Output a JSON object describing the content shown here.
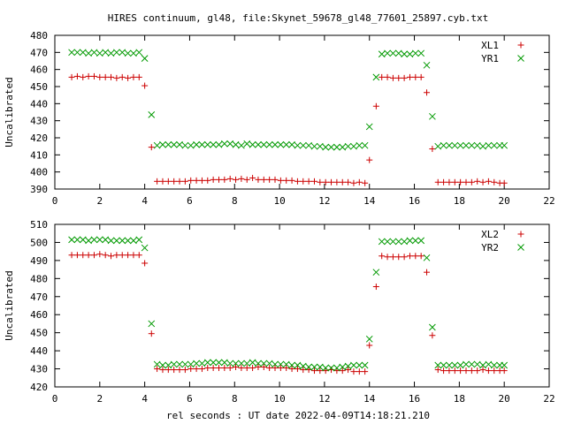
{
  "title": "HIRES continuum, gl48, file:Skynet_59678_gl48_77601_25897.cyb.txt",
  "xlabel": "rel seconds : UT date 2022-04-09T14:18:21.210",
  "colors": {
    "XL": "#cc0000",
    "YR": "#009900"
  },
  "chart_data": [
    {
      "type": "scatter",
      "ylabel": "Uncalibrated",
      "xlim": [
        0,
        22
      ],
      "ylim": [
        390,
        480
      ],
      "xticks": [
        0,
        2,
        4,
        6,
        8,
        10,
        12,
        14,
        16,
        18,
        20,
        22
      ],
      "yticks": [
        390,
        400,
        410,
        420,
        430,
        440,
        450,
        460,
        470,
        480
      ],
      "legend": "top-right",
      "series": [
        {
          "name": "XL1",
          "marker": "plus",
          "x": [
            0.75,
            1.0,
            1.25,
            1.5,
            1.75,
            2.0,
            2.25,
            2.5,
            2.75,
            3.0,
            3.25,
            3.5,
            3.75,
            4.0,
            4.3,
            4.55,
            4.8,
            5.05,
            5.3,
            5.55,
            5.8,
            6.05,
            6.3,
            6.55,
            6.8,
            7.05,
            7.3,
            7.55,
            7.8,
            8.05,
            8.3,
            8.55,
            8.8,
            9.05,
            9.3,
            9.55,
            9.8,
            10.05,
            10.3,
            10.55,
            10.8,
            11.05,
            11.3,
            11.55,
            11.8,
            12.05,
            12.3,
            12.55,
            12.8,
            13.05,
            13.3,
            13.55,
            13.8,
            14.0,
            14.3,
            14.55,
            14.8,
            15.05,
            15.3,
            15.55,
            15.8,
            16.05,
            16.3,
            16.55,
            16.8,
            17.05,
            17.3,
            17.55,
            17.8,
            18.05,
            18.3,
            18.55,
            18.8,
            19.05,
            19.3,
            19.55,
            19.8,
            20.0
          ],
          "y": [
            455.5,
            456,
            455.5,
            456,
            456,
            455.5,
            455.5,
            455.5,
            455,
            455.5,
            455,
            455.5,
            455.5,
            450.5,
            414.5,
            394.5,
            394.5,
            394.5,
            394.5,
            394.5,
            394.5,
            395,
            395,
            395,
            395,
            395.5,
            395.5,
            395.5,
            396,
            395.5,
            396,
            395.5,
            396.5,
            395.5,
            395.5,
            395.5,
            395.5,
            395,
            395,
            395,
            394.5,
            394.5,
            394.5,
            394.5,
            394,
            394,
            394,
            394,
            394,
            394,
            393.5,
            394,
            393.5,
            407,
            438.5,
            455.5,
            455.5,
            455,
            455,
            455,
            455.5,
            455.5,
            455.5,
            446.5,
            413.5,
            394,
            394,
            394,
            394,
            394,
            394,
            394,
            394.5,
            394,
            394.5,
            394,
            393.5,
            393.5
          ]
        },
        {
          "name": "YR1",
          "marker": "cross",
          "x": [
            0.75,
            1.0,
            1.25,
            1.5,
            1.75,
            2.0,
            2.25,
            2.5,
            2.75,
            3.0,
            3.25,
            3.5,
            3.75,
            4.0,
            4.3,
            4.55,
            4.8,
            5.05,
            5.3,
            5.55,
            5.8,
            6.05,
            6.3,
            6.55,
            6.8,
            7.05,
            7.3,
            7.55,
            7.8,
            8.05,
            8.3,
            8.55,
            8.8,
            9.05,
            9.3,
            9.55,
            9.8,
            10.05,
            10.3,
            10.55,
            10.8,
            11.05,
            11.3,
            11.55,
            11.8,
            12.05,
            12.3,
            12.55,
            12.8,
            13.05,
            13.3,
            13.55,
            13.8,
            14.0,
            14.3,
            14.55,
            14.8,
            15.05,
            15.3,
            15.55,
            15.8,
            16.05,
            16.3,
            16.55,
            16.8,
            17.05,
            17.3,
            17.55,
            17.8,
            18.05,
            18.3,
            18.55,
            18.8,
            19.05,
            19.3,
            19.55,
            19.8,
            20.0
          ],
          "y": [
            470,
            470,
            470,
            469.5,
            470,
            469.5,
            470,
            469.5,
            470,
            470,
            469.5,
            469.5,
            470,
            466.5,
            433.5,
            415.5,
            416,
            416,
            416,
            416,
            415.5,
            415.5,
            416,
            416,
            416,
            416,
            416,
            416.5,
            416.5,
            416,
            415.5,
            416.5,
            416,
            416,
            416,
            416,
            416,
            416,
            416,
            416,
            415.5,
            415.5,
            415.5,
            415,
            415,
            414.5,
            414.5,
            414.5,
            414.5,
            415,
            415,
            415.5,
            415.5,
            426.5,
            455.5,
            469,
            469.5,
            469.5,
            469.5,
            469,
            469,
            469.5,
            469.5,
            462.5,
            432.5,
            415,
            415.5,
            415.5,
            415.5,
            415.5,
            415.5,
            415.5,
            415.5,
            415,
            415.5,
            415.5,
            415.5,
            415.5
          ]
        }
      ]
    },
    {
      "type": "scatter",
      "ylabel": "Uncalibrated",
      "xlim": [
        0,
        22
      ],
      "ylim": [
        420,
        510
      ],
      "xticks": [
        0,
        2,
        4,
        6,
        8,
        10,
        12,
        14,
        16,
        18,
        20,
        22
      ],
      "yticks": [
        420,
        430,
        440,
        450,
        460,
        470,
        480,
        490,
        500,
        510
      ],
      "legend": "top-right",
      "series": [
        {
          "name": "XL2",
          "marker": "plus",
          "x": [
            0.75,
            1.0,
            1.25,
            1.5,
            1.75,
            2.0,
            2.25,
            2.5,
            2.75,
            3.0,
            3.25,
            3.5,
            3.75,
            4.0,
            4.3,
            4.55,
            4.8,
            5.05,
            5.3,
            5.55,
            5.8,
            6.05,
            6.3,
            6.55,
            6.8,
            7.05,
            7.3,
            7.55,
            7.8,
            8.05,
            8.3,
            8.55,
            8.8,
            9.05,
            9.3,
            9.55,
            9.8,
            10.05,
            10.3,
            10.55,
            10.8,
            11.05,
            11.3,
            11.55,
            11.8,
            12.05,
            12.3,
            12.55,
            12.8,
            13.05,
            13.3,
            13.55,
            13.8,
            14.0,
            14.3,
            14.55,
            14.8,
            15.05,
            15.3,
            15.55,
            15.8,
            16.05,
            16.3,
            16.55,
            16.8,
            17.05,
            17.3,
            17.55,
            17.8,
            18.05,
            18.3,
            18.55,
            18.8,
            19.05,
            19.3,
            19.55,
            19.8,
            20.0
          ],
          "y": [
            493,
            493,
            493,
            493,
            493,
            493.5,
            493,
            492.5,
            493,
            493,
            493,
            493,
            493,
            488.5,
            449.5,
            430,
            429.5,
            429.5,
            429.5,
            429.5,
            429.5,
            430,
            430,
            430,
            430.5,
            430.5,
            430.5,
            430.5,
            430.5,
            431,
            430.5,
            430.5,
            430.5,
            431,
            431,
            430.5,
            430.5,
            430.5,
            430.5,
            430,
            430,
            429.5,
            429.5,
            429,
            429,
            429,
            429.5,
            429,
            429,
            429.5,
            428.5,
            428.5,
            428.5,
            443,
            475.5,
            492.5,
            492,
            492,
            492,
            492,
            492.5,
            492.5,
            492.5,
            483.5,
            448.5,
            429.5,
            429,
            429,
            429,
            429,
            429,
            429,
            429,
            429.5,
            429,
            429,
            429,
            429
          ]
        },
        {
          "name": "YR2",
          "marker": "cross",
          "x": [
            0.75,
            1.0,
            1.25,
            1.5,
            1.75,
            2.0,
            2.25,
            2.5,
            2.75,
            3.0,
            3.25,
            3.5,
            3.75,
            4.0,
            4.3,
            4.55,
            4.8,
            5.05,
            5.3,
            5.55,
            5.8,
            6.05,
            6.3,
            6.55,
            6.8,
            7.05,
            7.3,
            7.55,
            7.8,
            8.05,
            8.3,
            8.55,
            8.8,
            9.05,
            9.3,
            9.55,
            9.8,
            10.05,
            10.3,
            10.55,
            10.8,
            11.05,
            11.3,
            11.55,
            11.8,
            12.05,
            12.3,
            12.55,
            12.8,
            13.05,
            13.3,
            13.55,
            13.8,
            14.0,
            14.3,
            14.55,
            14.8,
            15.05,
            15.3,
            15.55,
            15.8,
            16.05,
            16.3,
            16.55,
            16.8,
            17.05,
            17.3,
            17.55,
            17.8,
            18.05,
            18.3,
            18.55,
            18.8,
            19.05,
            19.3,
            19.55,
            19.8,
            20.0
          ],
          "y": [
            501.5,
            501.5,
            501.5,
            501,
            501.5,
            501.5,
            501.5,
            501,
            501,
            501,
            501,
            501,
            501.5,
            497,
            455,
            432.5,
            432,
            432,
            432.5,
            432.5,
            432.5,
            432.5,
            433,
            433,
            433.5,
            433.5,
            433.5,
            433.5,
            433,
            433,
            433,
            433,
            433.5,
            433,
            433,
            433,
            432.5,
            432.5,
            432.5,
            432,
            432,
            431.5,
            431,
            431,
            431,
            430.5,
            430.5,
            430.5,
            431,
            431.5,
            432,
            432,
            432,
            446.5,
            483.5,
            500.5,
            500.5,
            500.5,
            500.5,
            500.5,
            501,
            501,
            501,
            491.5,
            453,
            432,
            432,
            432,
            432,
            432,
            432.5,
            432.5,
            432.5,
            432,
            432.5,
            432,
            432,
            432
          ]
        }
      ]
    }
  ]
}
